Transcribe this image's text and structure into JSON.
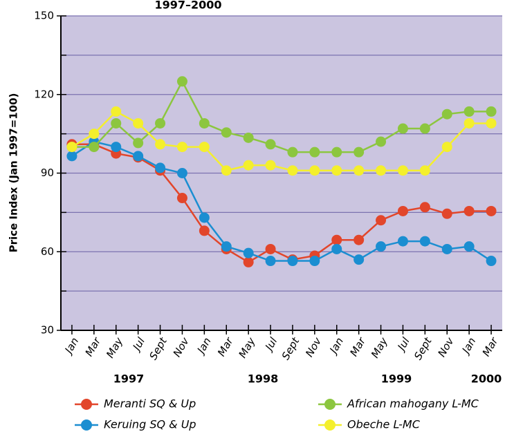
{
  "chart_data": {
    "type": "line",
    "title": "1997–2000",
    "y_label": "Price Index (Jan 1997=100)",
    "categories": [
      "Jan",
      "Mar",
      "May",
      "Jul",
      "Sept",
      "Nov",
      "Jan",
      "Mar",
      "May",
      "Jul",
      "Sept",
      "Nov",
      "Jan",
      "Mar",
      "May",
      "Jul",
      "Sept",
      "Nov",
      "Jan",
      "Mar"
    ],
    "years": [
      "1997",
      "1998",
      "1999",
      "2000"
    ],
    "ylim": [
      30,
      150
    ],
    "yticks": [
      30,
      60,
      90,
      120,
      150
    ],
    "minor_yticks": [
      45,
      75,
      105,
      135
    ],
    "grid": true,
    "series": [
      {
        "name": "Meranti SQ & Up",
        "color": "#e2462b",
        "values": [
          101,
          101,
          97.5,
          96,
          91,
          80.5,
          68,
          61,
          56,
          61,
          57,
          58.5,
          64.5,
          64.5,
          72,
          75.5,
          77,
          74.5,
          75.5,
          75.5
        ]
      },
      {
        "name": "Keruing SQ & Up",
        "color": "#1b8ed1",
        "values": [
          96.5,
          102,
          100,
          96.5,
          92,
          90,
          73,
          62,
          59.5,
          56.5,
          56.5,
          56.5,
          61,
          57,
          62,
          64,
          64,
          61,
          62,
          56.5
        ]
      },
      {
        "name": "African mahogany L-MC",
        "color": "#8cc63f",
        "values": [
          100,
          100,
          109,
          101.5,
          109,
          125,
          109,
          105.5,
          103.5,
          101,
          98,
          98,
          98,
          98,
          102,
          107,
          107,
          112.5,
          113.5,
          113.5
        ]
      },
      {
        "name": "Obeche L-MC",
        "color": "#f4ef2c",
        "values": [
          100,
          105,
          113.5,
          109,
          101,
          100,
          100,
          91,
          93,
          93,
          91,
          91,
          91,
          91,
          91,
          91,
          91,
          100,
          109,
          109
        ]
      }
    ]
  }
}
